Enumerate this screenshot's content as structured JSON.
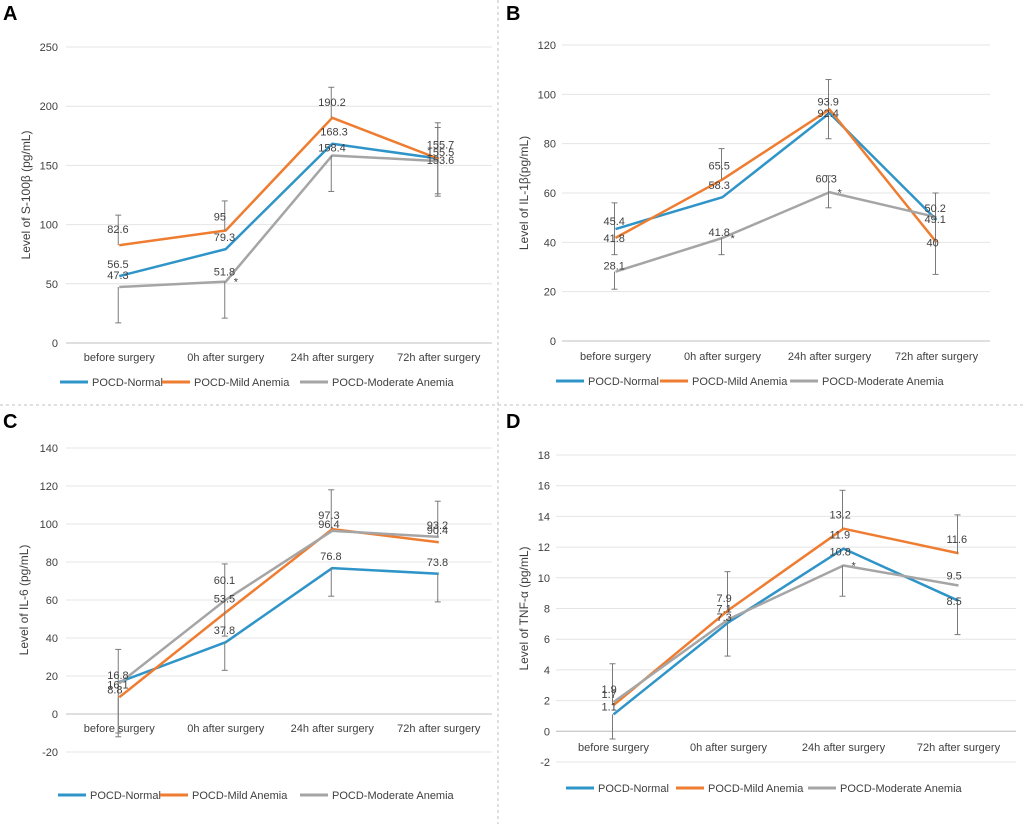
{
  "colors": {
    "normal": "#2f94c8",
    "mild": "#ee7d31",
    "moderate": "#a5a5a5",
    "axis": "#bfbfbf",
    "grid": "#e4e4e4",
    "divider": "#c0c0c0",
    "text": "#404040",
    "error": "#7a7a7a"
  },
  "panels": [
    {
      "letter": "A"
    },
    {
      "letter": "B"
    },
    {
      "letter": "C"
    },
    {
      "letter": "D"
    }
  ],
  "chart_data": [
    {
      "panel": "A",
      "type": "line",
      "title": "",
      "ylabel": "Level of S-100β (pg/mL)",
      "xlabel": "",
      "ylim": [
        0,
        250
      ],
      "yticks": [
        0,
        50,
        100,
        150,
        200,
        250
      ],
      "categories": [
        "before surgery",
        "0h after surgery",
        "24h after surgery",
        "72h after surgery"
      ],
      "series": [
        {
          "name": "POCD-Normal",
          "key": "normal",
          "values": [
            56.5,
            79.3,
            168.3,
            155.7
          ],
          "labels": [
            "56.5",
            "79.3",
            "168.3",
            "155.7"
          ]
        },
        {
          "name": "POCD-Mild Anemia",
          "key": "mild",
          "values": [
            82.6,
            95,
            190.2,
            155.5
          ],
          "labels": [
            "82.6",
            "95",
            "190.2",
            "155.5"
          ]
        },
        {
          "name": "POCD-Moderate Anemia",
          "key": "moderate",
          "values": [
            47.3,
            51.8,
            158.4,
            153.6
          ],
          "labels": [
            "47.3",
            "51.8",
            "158.4",
            "153.6"
          ]
        }
      ],
      "error_bars": [
        {
          "series": "mild",
          "index": 0,
          "high": 108
        },
        {
          "series": "moderate",
          "index": 0,
          "low": 17
        },
        {
          "series": "mild",
          "index": 1,
          "high": 120
        },
        {
          "series": "moderate",
          "index": 1,
          "low": 21
        },
        {
          "series": "mild",
          "index": 2,
          "high": 216
        },
        {
          "series": "moderate",
          "index": 2,
          "low": 128
        },
        {
          "series": "normal",
          "index": 3,
          "high": 186,
          "low": 126
        },
        {
          "series": "moderate",
          "index": 3,
          "high": 182,
          "low": 124
        }
      ],
      "significance": [
        {
          "series": "moderate",
          "index": 1,
          "mark": "*"
        }
      ],
      "legend": "bottom"
    },
    {
      "panel": "B",
      "type": "line",
      "title": "",
      "ylabel": "Level of IL-1β(pg/mL)",
      "xlabel": "",
      "ylim": [
        0,
        120
      ],
      "yticks": [
        0,
        20,
        40,
        60,
        80,
        100,
        120
      ],
      "categories": [
        "before surgery",
        "0h after surgery",
        "24h after surgery",
        "72h after surgery"
      ],
      "series": [
        {
          "name": "POCD-Normal",
          "key": "normal",
          "values": [
            45.4,
            58.3,
            92.4,
            49.1
          ],
          "labels": [
            "45.4",
            "58.3",
            "92.4",
            "49.1"
          ]
        },
        {
          "name": "POCD-Mild Anemia",
          "key": "mild",
          "values": [
            41.8,
            65.5,
            93.9,
            40
          ],
          "labels": [
            "41.8",
            "65.5",
            "93.9",
            "40"
          ]
        },
        {
          "name": "POCD-Moderate Anemia",
          "key": "moderate",
          "values": [
            28.1,
            41.8,
            60.3,
            50.2
          ],
          "labels": [
            "28.1",
            "41.8",
            "60.3",
            "50.2"
          ]
        }
      ],
      "error_bars": [
        {
          "series": "normal",
          "index": 0,
          "high": 56,
          "low": 35
        },
        {
          "series": "moderate",
          "index": 0,
          "low": 21
        },
        {
          "series": "mild",
          "index": 1,
          "high": 78
        },
        {
          "series": "moderate",
          "index": 1,
          "low": 35
        },
        {
          "series": "mild",
          "index": 2,
          "high": 106
        },
        {
          "series": "normal",
          "index": 2,
          "low": 82
        },
        {
          "series": "moderate",
          "index": 2,
          "high": 67,
          "low": 54
        },
        {
          "series": "moderate",
          "index": 3,
          "high": 60,
          "low": 27
        }
      ],
      "significance": [
        {
          "series": "moderate",
          "index": 1,
          "mark": "*"
        },
        {
          "series": "moderate",
          "index": 2,
          "mark": "*"
        }
      ],
      "legend": "bottom"
    },
    {
      "panel": "C",
      "type": "line",
      "title": "",
      "ylabel": "Level of IL-6 (pg/mL)",
      "xlabel": "",
      "ylim": [
        -20,
        140
      ],
      "yticks": [
        -20,
        0,
        20,
        40,
        60,
        80,
        100,
        120,
        140
      ],
      "categories": [
        "before surgery",
        "0h after surgery",
        "24h after surgery",
        "72h after surgery"
      ],
      "series": [
        {
          "name": "POCD-Normal",
          "key": "normal",
          "values": [
            16.8,
            37.8,
            76.8,
            73.8
          ],
          "labels": [
            "16.8",
            "37.8",
            "76.8",
            "73.8"
          ]
        },
        {
          "name": "POCD-Mild Anemia",
          "key": "mild",
          "values": [
            8.8,
            53.5,
            97.3,
            90.4
          ],
          "labels": [
            "8.8",
            "53.5",
            "97.3",
            "90.4"
          ]
        },
        {
          "name": "POCD-Moderate Anemia",
          "key": "moderate",
          "values": [
            16.1,
            60.1,
            96.4,
            93.2
          ],
          "labels": [
            "16.1",
            "60.1",
            "96.4",
            "93.2"
          ]
        }
      ],
      "error_bars": [
        {
          "series": "normal",
          "index": 0,
          "high": 34,
          "low": -10
        },
        {
          "series": "mild",
          "index": 0,
          "low": -12
        },
        {
          "series": "moderate",
          "index": 1,
          "high": 79,
          "low": 41
        },
        {
          "series": "normal",
          "index": 1,
          "low": 23
        },
        {
          "series": "mild",
          "index": 2,
          "high": 118
        },
        {
          "series": "normal",
          "index": 2,
          "low": 62
        },
        {
          "series": "moderate",
          "index": 3,
          "high": 112
        },
        {
          "series": "normal",
          "index": 3,
          "low": 59
        }
      ],
      "significance": [],
      "legend": "bottom"
    },
    {
      "panel": "D",
      "type": "line",
      "title": "",
      "ylabel": "Level of TNF-α (pg/mL)",
      "xlabel": "",
      "ylim": [
        -2,
        18
      ],
      "yticks": [
        -2,
        0,
        2,
        4,
        6,
        8,
        10,
        12,
        14,
        16,
        18
      ],
      "categories": [
        "before surgery",
        "0h after surgery",
        "24h after surgery",
        "72h after surgery"
      ],
      "series": [
        {
          "name": "POCD-Normal",
          "key": "normal",
          "values": [
            1.1,
            7.1,
            11.9,
            8.5
          ],
          "labels": [
            "1.1",
            "7.1",
            "11.9",
            "8.5"
          ]
        },
        {
          "name": "POCD-Mild Anemia",
          "key": "mild",
          "values": [
            1.7,
            7.9,
            13.2,
            11.6
          ],
          "labels": [
            "1.7",
            "7.9",
            "13.2",
            "11.6"
          ]
        },
        {
          "name": "POCD-Moderate Anemia",
          "key": "moderate",
          "values": [
            1.9,
            7.3,
            10.8,
            9.5
          ],
          "labels": [
            "1.9",
            "7.3",
            "10.8",
            "9.5"
          ]
        }
      ],
      "error_bars": [
        {
          "series": "mild",
          "index": 0,
          "high": 4.4
        },
        {
          "series": "normal",
          "index": 0,
          "low": -0.5
        },
        {
          "series": "mild",
          "index": 1,
          "high": 10.4
        },
        {
          "series": "normal",
          "index": 1,
          "low": 4.9
        },
        {
          "series": "mild",
          "index": 2,
          "high": 15.7
        },
        {
          "series": "moderate",
          "index": 2,
          "low": 8.8
        },
        {
          "series": "mild",
          "index": 3,
          "high": 14.1
        },
        {
          "series": "normal",
          "index": 3,
          "low": 6.3
        }
      ],
      "significance": [
        {
          "series": "moderate",
          "index": 2,
          "mark": "*"
        }
      ],
      "legend": "bottom"
    }
  ]
}
